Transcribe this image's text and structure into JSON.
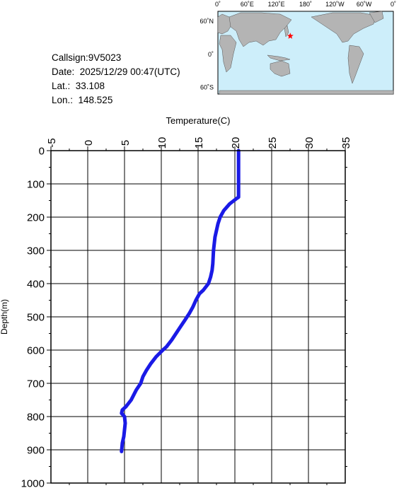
{
  "info": {
    "callsign": "Callsign:9V5023",
    "date": "Date:  2025/12/29 00:47(UTC)",
    "lat": "Lat.:  33.108",
    "lon": "Lon.:  148.525"
  },
  "map": {
    "top_labels": [
      "0˚",
      "60˚E",
      "120˚E",
      "180˚",
      "120˚W",
      "60˚W",
      "0˚"
    ],
    "left_labels": [
      "60˚N",
      "0˚",
      "60˚S"
    ],
    "marker_lat": 33.108,
    "marker_lon": 148.525,
    "colors": {
      "ocean": "#cdeefa",
      "land": "#b4b4b4",
      "marker": "#ff0000"
    }
  },
  "chart_data": {
    "type": "line",
    "xlabel": "Temperature(C)",
    "ylabel": "Depth(m)",
    "xlim": [
      -5,
      35
    ],
    "ylim": [
      1000,
      0
    ],
    "x_ticks": [
      "-5",
      "0",
      "5",
      "10",
      "15",
      "20",
      "25",
      "30",
      "35"
    ],
    "y_ticks": [
      "0",
      "100",
      "200",
      "300",
      "400",
      "500",
      "600",
      "700",
      "800",
      "900",
      "1000"
    ],
    "grid": true,
    "line_color": "#1a1ae6",
    "series": [
      {
        "x": [
          20.5,
          20.5,
          20.3,
          19.3,
          18.5,
          18.0,
          17.7,
          17.3,
          17.1,
          17.0,
          16.9,
          16.7,
          16.4,
          15.7,
          15.2,
          14.7,
          14.3,
          13.8,
          13.2,
          12.6,
          12.0,
          11.4,
          10.7,
          10.2,
          9.3,
          8.6,
          8.0,
          7.5,
          7.2,
          6.6,
          5.9,
          5.2,
          4.7,
          4.6,
          5.0,
          5.1,
          5.0,
          4.9,
          4.7,
          4.6
        ],
        "y": [
          0,
          140,
          143,
          160,
          180,
          200,
          220,
          260,
          300,
          340,
          360,
          380,
          400,
          420,
          430,
          450,
          470,
          490,
          510,
          530,
          550,
          570,
          590,
          600,
          620,
          640,
          660,
          680,
          700,
          720,
          750,
          770,
          780,
          790,
          800,
          820,
          840,
          860,
          880,
          905
        ]
      }
    ]
  }
}
